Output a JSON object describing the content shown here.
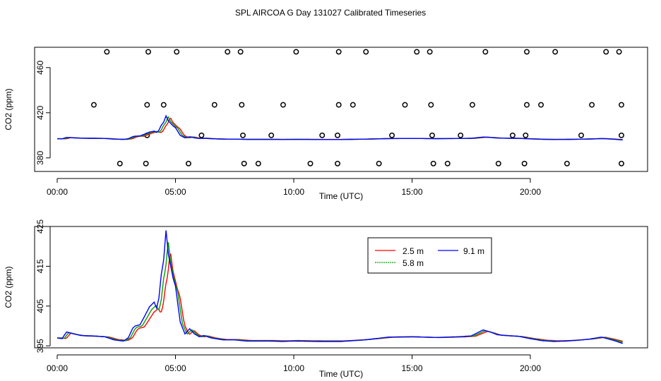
{
  "title": "SPL AIRCOA G  Day 131027  Calibrated Timeseries",
  "chart_data": [
    {
      "type": "scatter+line",
      "xlabel": "Time (UTC)",
      "ylabel": "CO2 (ppm)",
      "xlim": [
        0,
        24
      ],
      "ylim": [
        368,
        478
      ],
      "x_ticks": [
        0,
        5,
        10,
        15,
        20
      ],
      "x_tick_labels": [
        "00:00",
        "05:00",
        "10:00",
        "15:00",
        "20:00"
      ],
      "y_ticks": [
        380,
        420,
        460
      ],
      "y_tick_labels": [
        "380",
        "420",
        "460"
      ],
      "points": [
        [
          2.1,
          474
        ],
        [
          3.85,
          474
        ],
        [
          5.05,
          474
        ],
        [
          7.2,
          474
        ],
        [
          7.75,
          474
        ],
        [
          10.1,
          474
        ],
        [
          11.9,
          474
        ],
        [
          13.05,
          474
        ],
        [
          15.2,
          474
        ],
        [
          15.75,
          474
        ],
        [
          18.1,
          474
        ],
        [
          19.85,
          474
        ],
        [
          21.05,
          474
        ],
        [
          23.2,
          474
        ],
        [
          23.75,
          474
        ],
        [
          1.55,
          427
        ],
        [
          3.8,
          427
        ],
        [
          4.5,
          427
        ],
        [
          6.65,
          427
        ],
        [
          7.8,
          427
        ],
        [
          9.55,
          427
        ],
        [
          11.9,
          427
        ],
        [
          12.5,
          427
        ],
        [
          14.7,
          427
        ],
        [
          15.8,
          427
        ],
        [
          17.55,
          427
        ],
        [
          19.85,
          427
        ],
        [
          20.45,
          427
        ],
        [
          22.6,
          427
        ],
        [
          23.85,
          427
        ],
        [
          3.8,
          400
        ],
        [
          6.1,
          400
        ],
        [
          7.85,
          400
        ],
        [
          9.05,
          400
        ],
        [
          11.2,
          400
        ],
        [
          11.85,
          400
        ],
        [
          14.15,
          400
        ],
        [
          15.85,
          400
        ],
        [
          17.05,
          400
        ],
        [
          19.25,
          400
        ],
        [
          19.8,
          400
        ],
        [
          22.15,
          400
        ],
        [
          23.85,
          400
        ],
        [
          2.65,
          375
        ],
        [
          3.75,
          375
        ],
        [
          5.55,
          375
        ],
        [
          7.9,
          375
        ],
        [
          8.5,
          375
        ],
        [
          10.7,
          375
        ],
        [
          11.85,
          375
        ],
        [
          13.6,
          375
        ],
        [
          15.9,
          375
        ],
        [
          16.5,
          375
        ],
        [
          18.65,
          375
        ],
        [
          19.75,
          375
        ],
        [
          21.55,
          375
        ],
        [
          23.85,
          375
        ]
      ],
      "series": [
        {
          "name": "2.5 m",
          "color": "#ff0000",
          "lag": 0.18,
          "scale": 0.7
        },
        {
          "name": "5.8 m",
          "color": "#00a000",
          "lag": 0.09,
          "scale": 0.73
        },
        {
          "name": "9.1 m",
          "color": "#0000ff",
          "lag": 0.0,
          "scale": 0.75
        }
      ]
    },
    {
      "type": "line",
      "xlabel": "Time (UTC)",
      "ylabel": "CO2 (ppm)",
      "xlim": [
        0,
        24
      ],
      "ylim": [
        394.5,
        425
      ],
      "x_ticks": [
        0,
        5,
        10,
        15,
        20
      ],
      "x_tick_labels": [
        "00:00",
        "05:00",
        "10:00",
        "15:00",
        "20:00"
      ],
      "y_ticks": [
        395,
        405,
        415,
        425
      ],
      "y_tick_labels": [
        "395",
        "405",
        "415",
        "425"
      ],
      "legend_position": "top-right",
      "x": [
        0,
        0.2,
        0.4,
        0.7,
        1.0,
        1.5,
        2.0,
        2.4,
        2.8,
        3.0,
        3.2,
        3.3,
        3.5,
        3.7,
        3.9,
        4.1,
        4.2,
        4.3,
        4.4,
        4.5,
        4.6,
        4.7,
        4.8,
        4.9,
        5.0,
        5.2,
        5.4,
        5.6,
        5.8,
        6.0,
        6.2,
        6.5,
        7.0,
        7.5,
        8.0,
        8.5,
        9.0,
        9.5,
        10.0,
        11.0,
        12.0,
        13.0,
        14.0,
        15.0,
        16.0,
        17.0,
        17.5,
        18.0,
        18.3,
        18.6,
        19.0,
        19.5,
        20.0,
        20.5,
        21.0,
        21.5,
        22.0,
        22.5,
        23.0,
        23.5,
        23.9
      ],
      "values": [
        397,
        396.8,
        398.5,
        398,
        397.6,
        397.5,
        397.3,
        396.5,
        396.2,
        397,
        399.5,
        400,
        400.3,
        402.5,
        404.8,
        406,
        404.5,
        407,
        413,
        416.5,
        424,
        418,
        415,
        412,
        410,
        401,
        398,
        399.3,
        398,
        397.3,
        397.6,
        397,
        396.5,
        396.5,
        396.2,
        396.2,
        396.2,
        396.1,
        396.2,
        396.1,
        396.1,
        396.5,
        397.2,
        397.3,
        397.1,
        397.3,
        397.5,
        399,
        398.5,
        397.8,
        397.6,
        397.4,
        396.8,
        396.3,
        396.1,
        396.2,
        396.4,
        396.7,
        397.2,
        396.4,
        395.6
      ],
      "series": [
        {
          "name": "2.5 m",
          "color": "#ff0000",
          "lag": 0.18,
          "scale": 0.82
        },
        {
          "name": "5.8 m",
          "color": "#00a000",
          "lag": 0.09,
          "scale": 0.91
        },
        {
          "name": "9.1 m",
          "color": "#0000ff",
          "lag": 0.0,
          "scale": 1.0
        }
      ]
    }
  ]
}
